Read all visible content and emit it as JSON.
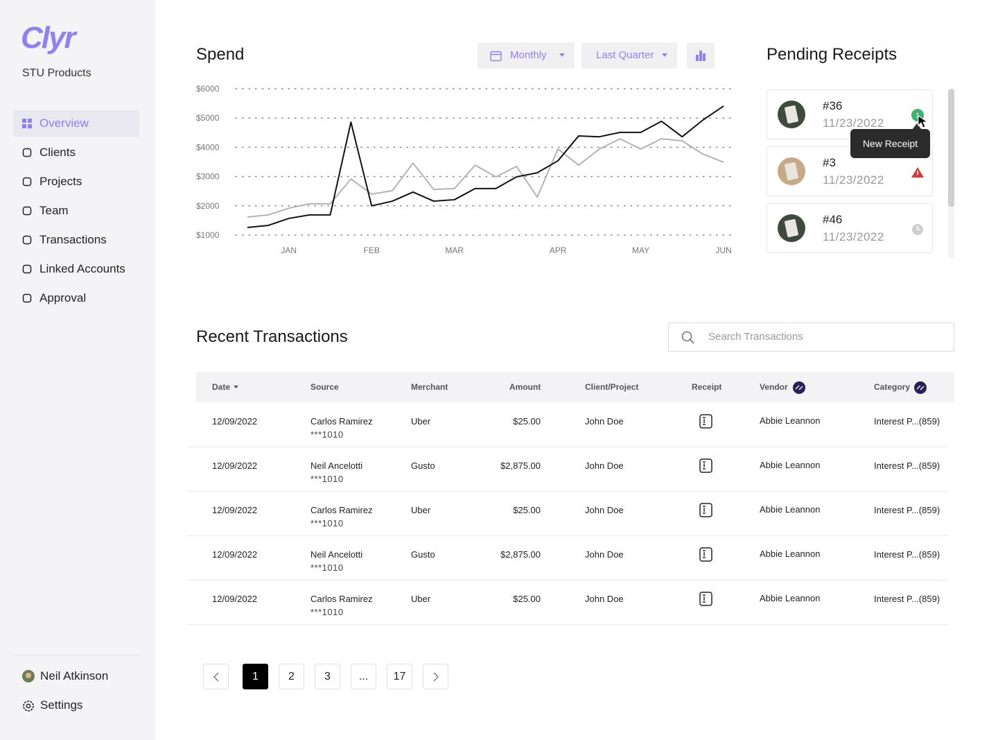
{
  "sidebar": {
    "brand": "Clyr",
    "org": "STU Products",
    "nav": [
      {
        "label": "Overview",
        "active": true
      },
      {
        "label": "Clients"
      },
      {
        "label": "Projects"
      },
      {
        "label": "Team"
      },
      {
        "label": "Transactions"
      },
      {
        "label": "Linked Accounts"
      },
      {
        "label": "Approval"
      }
    ],
    "user": "Neil Atkinson",
    "settings": "Settings"
  },
  "spend": {
    "title": "Spend",
    "period": "Monthly",
    "range": "Last Quarter"
  },
  "chart_data": {
    "type": "line",
    "categories": [
      null,
      null,
      "JAN",
      null,
      null,
      null,
      "FEB",
      null,
      null,
      null,
      "MAR",
      null,
      null,
      null,
      null,
      "APR",
      null,
      null,
      null,
      "MAY",
      null,
      null,
      null,
      "JUN"
    ],
    "series": [
      {
        "color": "#111111",
        "values": [
          1260,
          1330,
          1570,
          1690,
          1690,
          4860,
          2000,
          2160,
          2470,
          2160,
          2210,
          2590,
          2590,
          2990,
          3130,
          3540,
          4390,
          4360,
          4510,
          4510,
          4890,
          4360,
          4930,
          5410
        ]
      },
      {
        "color": "#b3b3b3",
        "values": [
          1620,
          1690,
          1920,
          2070,
          2070,
          2920,
          2400,
          2520,
          3460,
          2560,
          2590,
          3390,
          2990,
          3350,
          2300,
          3940,
          3390,
          3940,
          4290,
          3940,
          4290,
          4220,
          3770,
          3490
        ]
      }
    ],
    "ylim": [
      1000,
      6000
    ],
    "yticks": [
      {
        "value": 1000,
        "label": "$1000"
      },
      {
        "value": 2000,
        "label": "$2000"
      },
      {
        "value": 3000,
        "label": "$3000"
      },
      {
        "value": 4000,
        "label": "$4000"
      },
      {
        "value": 5000,
        "label": "$5000"
      },
      {
        "value": 6000,
        "label": "$6000"
      }
    ],
    "grid": true
  },
  "receipts": {
    "title": "Pending Receipts",
    "items": [
      {
        "id": "#36",
        "date": "11/23/2022",
        "status": "new",
        "badge": "1"
      },
      {
        "id": "#3",
        "date": "11/23/2022",
        "status": "warning"
      },
      {
        "id": "#46",
        "date": "11/23/2022",
        "status": "pending"
      }
    ],
    "tooltip": "New Receipt"
  },
  "transactions": {
    "title": "Recent Transactions",
    "search_placeholder": "Search Transactions",
    "columns": [
      "Date",
      "Source",
      "Merchant",
      "Amount",
      "Client/Project",
      "Receipt",
      "Vendor",
      "Category"
    ],
    "rows": [
      {
        "date": "12/09/2022",
        "source": "Carlos Ramirez",
        "account": "***1010",
        "merchant": "Uber",
        "amount": "$25.00",
        "client": "John Doe",
        "vendor": "Abbie Leannon",
        "category": "Interest P...(859)"
      },
      {
        "date": "12/09/2022",
        "source": "Neil Ancelotti",
        "account": "***1010",
        "merchant": "Gusto",
        "amount": "$2,875.00",
        "client": "John Doe",
        "vendor": "Abbie Leannon",
        "category": "Interest P...(859)"
      },
      {
        "date": "12/09/2022",
        "source": "Carlos Ramirez",
        "account": "***1010",
        "merchant": "Uber",
        "amount": "$25.00",
        "client": "John Doe",
        "vendor": "Abbie Leannon",
        "category": "Interest P...(859)"
      },
      {
        "date": "12/09/2022",
        "source": "Neil Ancelotti",
        "account": "***1010",
        "merchant": "Gusto",
        "amount": "$2,875.00",
        "client": "John Doe",
        "vendor": "Abbie Leannon",
        "category": "Interest P...(859)"
      },
      {
        "date": "12/09/2022",
        "source": "Carlos Ramirez",
        "account": "***1010",
        "merchant": "Uber",
        "amount": "$25.00",
        "client": "John Doe",
        "vendor": "Abbie Leannon",
        "category": "Interest P...(859)"
      }
    ],
    "pages": [
      1,
      2,
      3,
      "...",
      17
    ],
    "current_page": 1
  }
}
